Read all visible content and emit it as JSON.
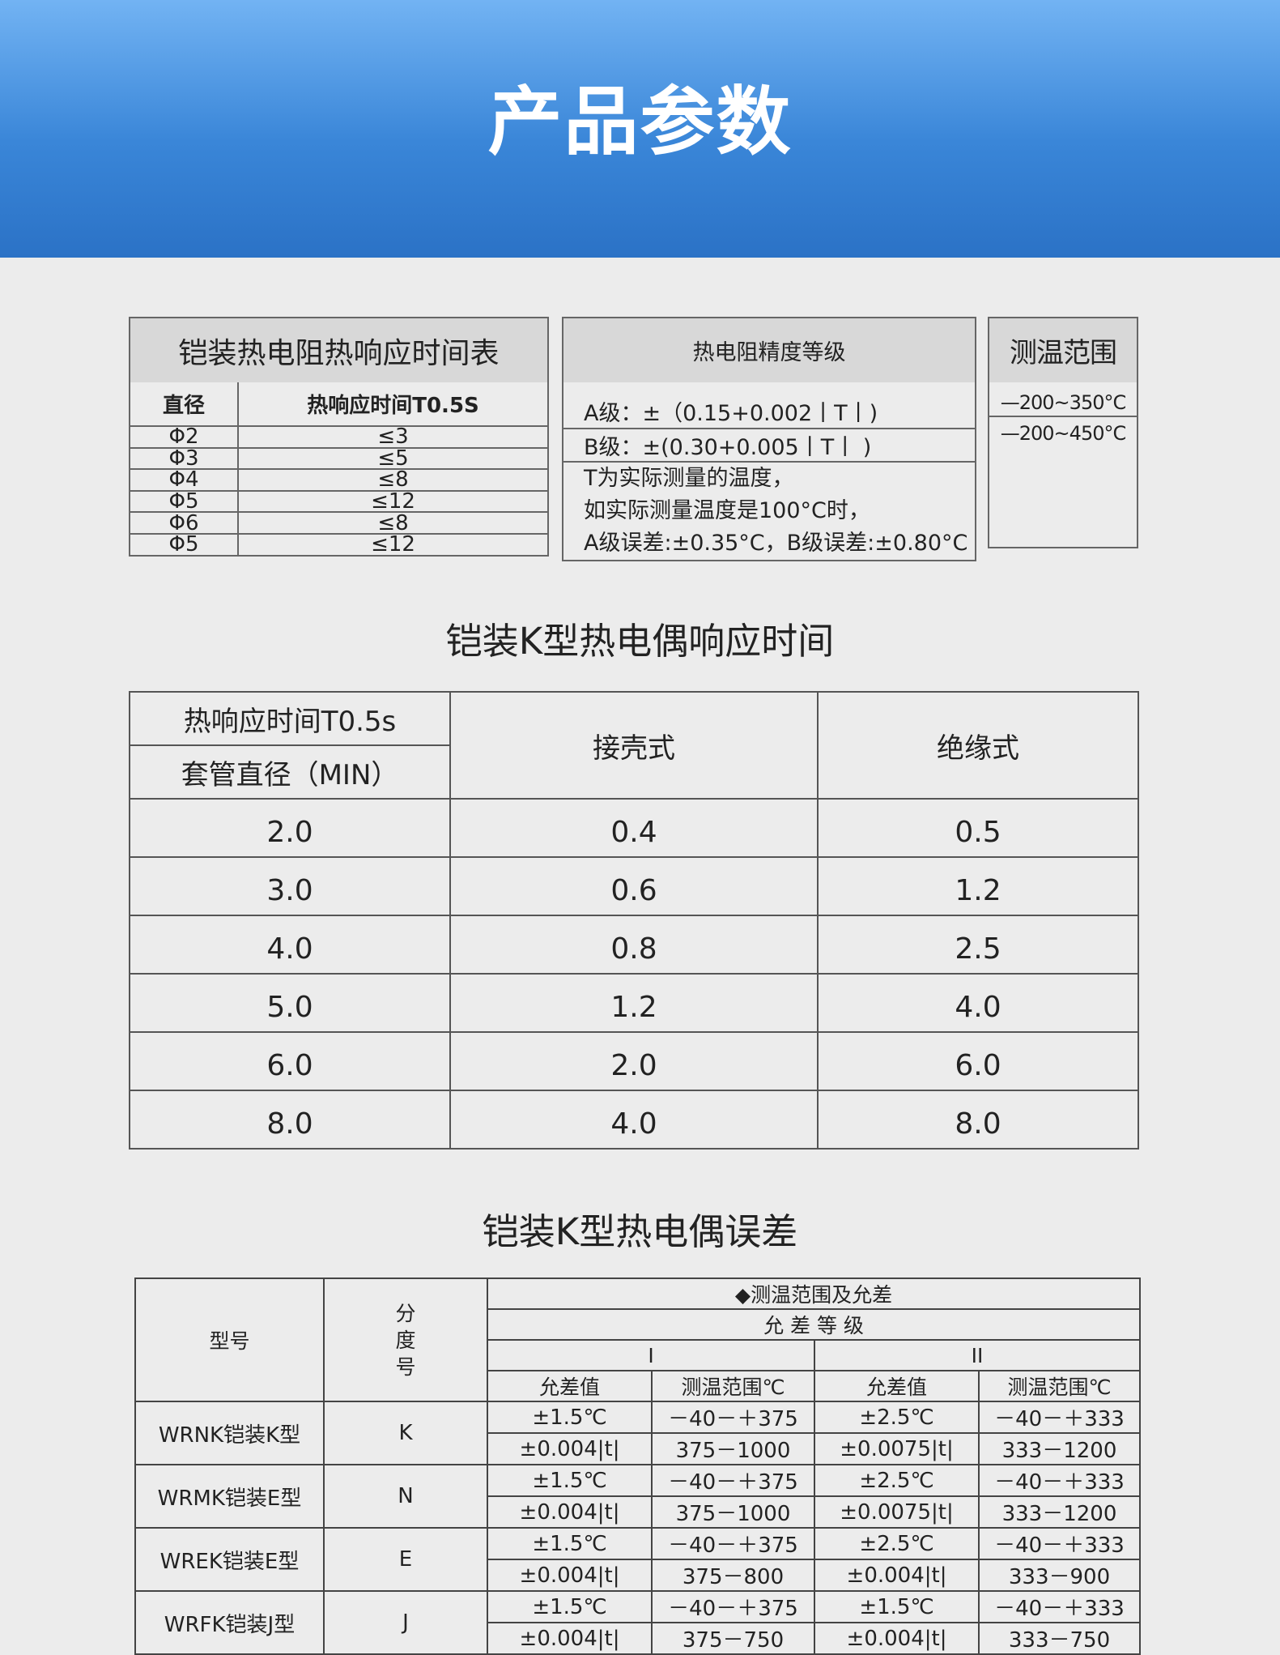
{
  "header": {
    "title": "产品参数"
  },
  "rtd_response": {
    "title": "铠装热电阻热响应时间表",
    "col_diameter": "直径",
    "col_time": "热响应时间T0.5S",
    "rows": [
      [
        "Φ2",
        "≤3"
      ],
      [
        "Φ3",
        "≤5"
      ],
      [
        "Φ4",
        "≤8"
      ],
      [
        "Φ5",
        "≤12"
      ],
      [
        "Φ6",
        "≤8"
      ],
      [
        "Φ5",
        "≤12"
      ]
    ]
  },
  "rtd_accuracy": {
    "title": "热电阻精度等级",
    "lines": [
      "A级：±（0.15+0.002丨T丨)",
      "B级：±(0.30+0.005丨T丨 )",
      "T为实际测量的温度，",
      "如实际测量温度是100°C时，",
      "A级误差:±0.35°C，B级误差:±0.80°C"
    ]
  },
  "range": {
    "title": "测温范围",
    "lines": [
      "—200~350°C",
      "—200~450°C"
    ]
  },
  "k_response": {
    "title": "铠装K型热电偶响应时间",
    "head_top": "热响应时间T0.5s",
    "head_bottom": "套管直径（MIN）",
    "col2": "接壳式",
    "col3": "绝缘式",
    "rows": [
      [
        "2.0",
        "0.4",
        "0.5"
      ],
      [
        "3.0",
        "0.6",
        "1.2"
      ],
      [
        "4.0",
        "0.8",
        "2.5"
      ],
      [
        "5.0",
        "1.2",
        "4.0"
      ],
      [
        "6.0",
        "2.0",
        "6.0"
      ],
      [
        "8.0",
        "4.0",
        "8.0"
      ]
    ]
  },
  "k_error": {
    "title": "铠装K型热电偶误差",
    "col_model": "型号",
    "col_grad": "分度号",
    "group": "◆测温范围及允差",
    "grade": "允 差 等 级",
    "g1": "I",
    "g2": "II",
    "sub": [
      "允差值",
      "测温范围℃",
      "允差值",
      "测温范围℃"
    ],
    "rows": [
      {
        "model": "WRNK铠装K型",
        "grad": "K",
        "r": [
          [
            "±1.5℃",
            "－40－＋375",
            "±2.5℃",
            "－40－＋333"
          ],
          [
            "±0.004|t|",
            "375－1000",
            "±0.0075|t|",
            "333－1200"
          ]
        ]
      },
      {
        "model": "WRMK铠装E型",
        "grad": "N",
        "r": [
          [
            "±1.5℃",
            "－40－＋375",
            "±2.5℃",
            "－40－＋333"
          ],
          [
            "±0.004|t|",
            "375－1000",
            "±0.0075|t|",
            "333－1200"
          ]
        ]
      },
      {
        "model": "WREK铠装E型",
        "grad": "E",
        "r": [
          [
            "±1.5℃",
            "－40－＋375",
            "±2.5℃",
            "－40－＋333"
          ],
          [
            "±0.004|t|",
            "375－800",
            "±0.004|t|",
            "333－900"
          ]
        ]
      },
      {
        "model": "WRFK铠装J型",
        "grad": "J",
        "r": [
          [
            "±1.5℃",
            "－40－＋375",
            "±1.5℃",
            "－40－＋333"
          ],
          [
            "±0.004|t|",
            "375－750",
            "±0.004|t|",
            "333－750"
          ]
        ]
      }
    ]
  }
}
